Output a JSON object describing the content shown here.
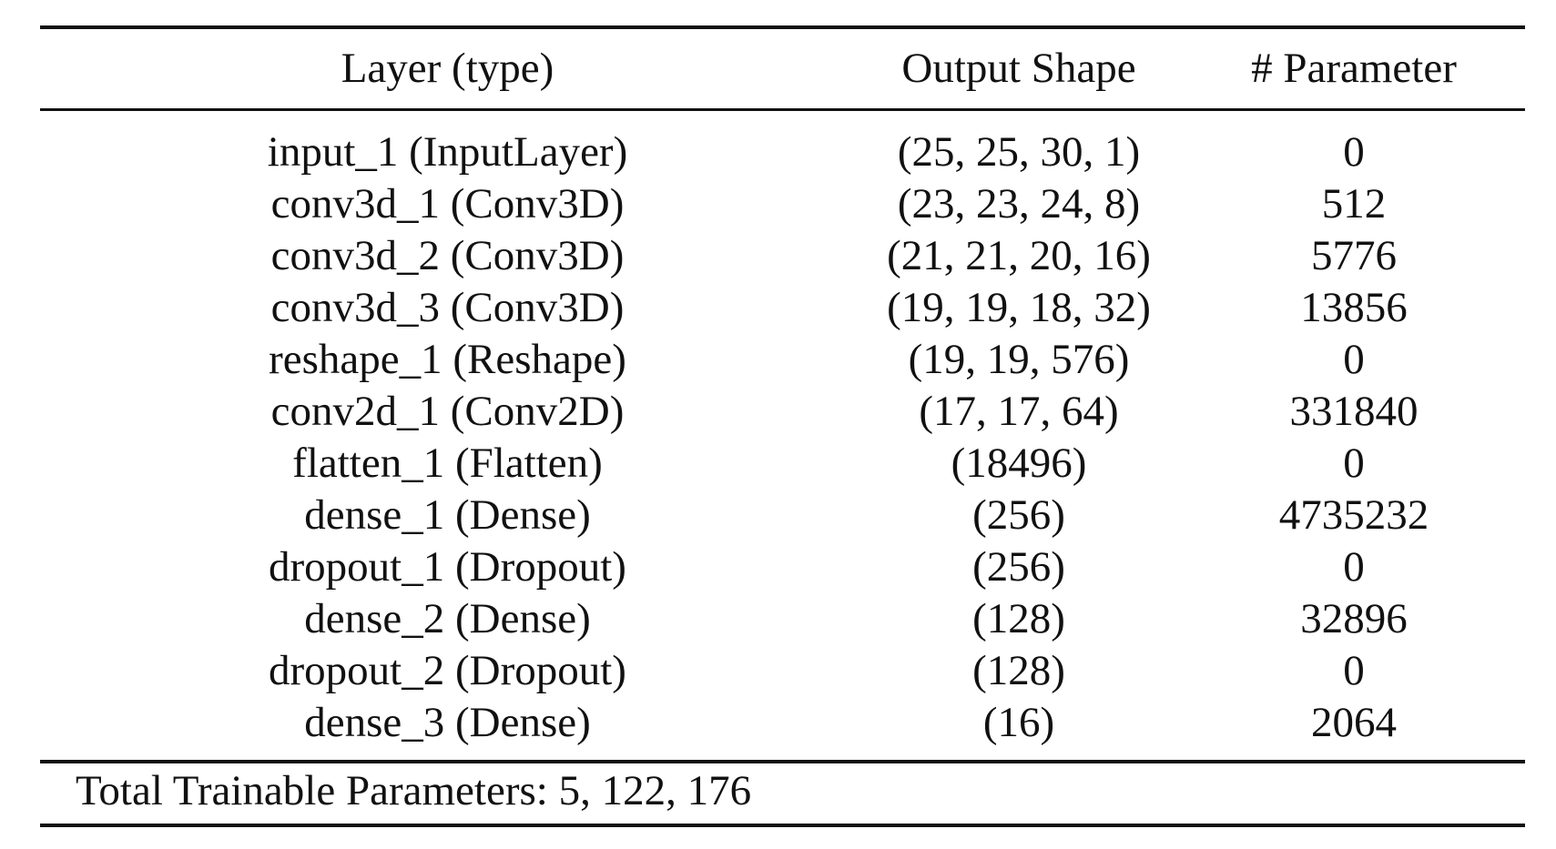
{
  "table": {
    "headers": {
      "layer": "Layer (type)",
      "shape": "Output Shape",
      "param": "# Parameter"
    },
    "rows": [
      {
        "layer": "input_1 (InputLayer)",
        "shape": "(25, 25, 30, 1)",
        "param": "0"
      },
      {
        "layer": "conv3d_1 (Conv3D)",
        "shape": "(23, 23, 24, 8)",
        "param": "512"
      },
      {
        "layer": "conv3d_2 (Conv3D)",
        "shape": "(21, 21, 20, 16)",
        "param": "5776"
      },
      {
        "layer": "conv3d_3 (Conv3D)",
        "shape": "(19, 19, 18, 32)",
        "param": "13856"
      },
      {
        "layer": "reshape_1 (Reshape)",
        "shape": "(19, 19, 576)",
        "param": "0"
      },
      {
        "layer": "conv2d_1 (Conv2D)",
        "shape": "(17, 17, 64)",
        "param": "331840"
      },
      {
        "layer": "flatten_1 (Flatten)",
        "shape": "(18496)",
        "param": "0"
      },
      {
        "layer": "dense_1 (Dense)",
        "shape": "(256)",
        "param": "4735232"
      },
      {
        "layer": "dropout_1 (Dropout)",
        "shape": "(256)",
        "param": "0"
      },
      {
        "layer": "dense_2 (Dense)",
        "shape": "(128)",
        "param": "32896"
      },
      {
        "layer": "dropout_2 (Dropout)",
        "shape": "(128)",
        "param": "0"
      },
      {
        "layer": "dense_3 (Dense)",
        "shape": "(16)",
        "param": "2064"
      }
    ],
    "total": "Total Trainable Parameters: 5, 122, 176"
  }
}
